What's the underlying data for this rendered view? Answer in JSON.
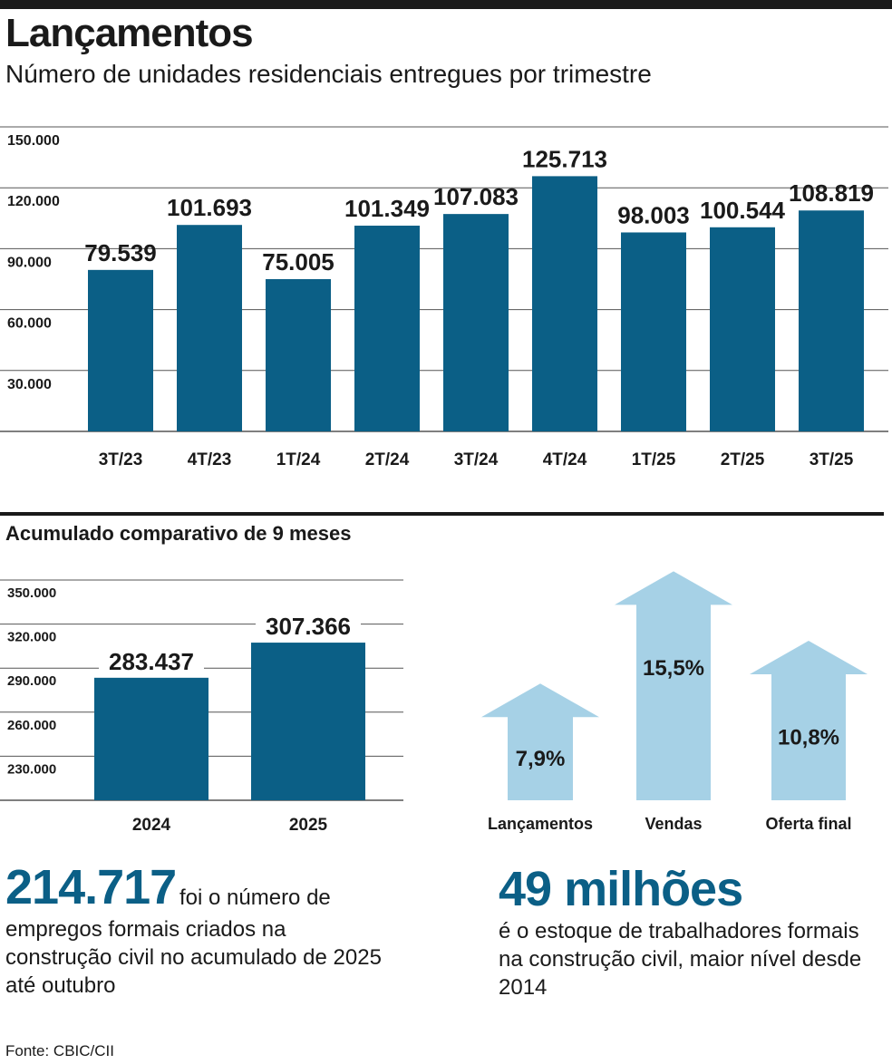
{
  "header": {
    "title": "Lançamentos",
    "subtitle": "Número de unidades residenciais entregues por trimestre"
  },
  "colors": {
    "bar": "#0b5f86",
    "arrow": "#a6d1e6",
    "text": "#1a1a1a"
  },
  "chart_data": [
    {
      "type": "bar",
      "title": "Lançamentos",
      "subtitle": "Número de unidades residenciais entregues por trimestre",
      "categories": [
        "3T/23",
        "4T/23",
        "1T/24",
        "2T/24",
        "3T/24",
        "4T/24",
        "1T/25",
        "2T/25",
        "3T/25"
      ],
      "values": [
        79539,
        101693,
        75005,
        101349,
        107083,
        125713,
        98003,
        100544,
        108819
      ],
      "value_labels": [
        "79.539",
        "101.693",
        "75.005",
        "101.349",
        "107.083",
        "125.713",
        "98.003",
        "100.544",
        "108.819"
      ],
      "yticks": [
        30000,
        60000,
        90000,
        120000,
        150000
      ],
      "ytick_labels": [
        "30.000",
        "60.000",
        "90.000",
        "120.000",
        "150.000"
      ],
      "ylim": [
        0,
        150000
      ],
      "grid": true
    },
    {
      "type": "bar",
      "title": "Acumulado comparativo de 9 meses",
      "categories": [
        "2024",
        "2025"
      ],
      "values": [
        283437,
        307366
      ],
      "value_labels": [
        "283.437",
        "307.366"
      ],
      "yticks": [
        230000,
        260000,
        290000,
        320000,
        350000
      ],
      "ytick_labels": [
        "230.000",
        "260.000",
        "290.000",
        "320.000",
        "350.000"
      ],
      "ylim": [
        200000,
        350000
      ],
      "grid": true
    },
    {
      "type": "bar",
      "style": "arrows",
      "categories": [
        "Lançamentos",
        "Vendas",
        "Oferta final"
      ],
      "values": [
        7.9,
        15.5,
        10.8
      ],
      "value_labels": [
        "7,9%",
        "15,5%",
        "10,8%"
      ]
    }
  ],
  "section2": {
    "title": "Acumulado comparativo de 9 meses"
  },
  "fact1": {
    "number": "214.717",
    "text_inline": "foi o número de",
    "text_rest": "empregos formais criados na construção civil no acumulado de 2025 até outubro"
  },
  "fact2": {
    "number": "49 milhões",
    "text": "é o estoque de trabalhadores formais na construção civil, maior nível desde 2014"
  },
  "source": "Fonte: CBIC/CII"
}
